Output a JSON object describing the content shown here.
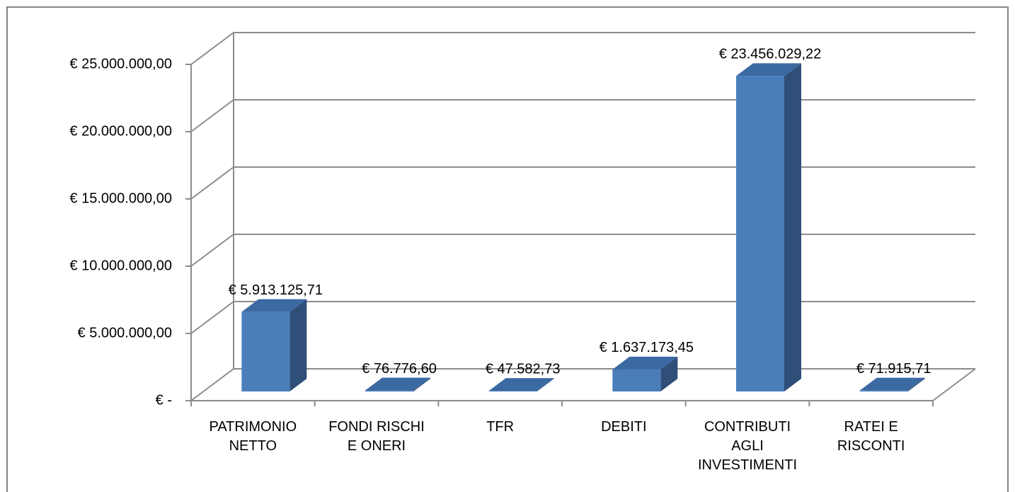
{
  "chart_data": {
    "type": "bar3d",
    "categories": [
      "PATRIMONIO NETTO",
      "FONDI RISCHI E ONERI",
      "TFR",
      "DEBITI",
      "CONTRIBUTI AGLI INVESTIMENTI",
      "RATEI E RISCONTI"
    ],
    "values": [
      5913125.71,
      76776.6,
      47582.73,
      1637173.45,
      23456029.22,
      71915.71
    ],
    "value_labels": [
      "€ 5.913.125,71",
      "€ 76.776,60",
      "€ 47.582,73",
      "€ 1.637.173,45",
      "€ 23.456.029,22",
      "€ 71.915,71"
    ],
    "color": "#4a7ebb",
    "ylim": [
      0,
      25000000
    ],
    "yticks": [
      {
        "value": 0,
        "label": "€ -"
      },
      {
        "value": 5000000,
        "label": "€ 5.000.000,00"
      },
      {
        "value": 10000000,
        "label": "€ 10.000.000,00"
      },
      {
        "value": 15000000,
        "label": "€ 15.000.000,00"
      },
      {
        "value": 20000000,
        "label": "€ 20.000.000,00"
      },
      {
        "value": 25000000,
        "label": "€ 25.000.000,00"
      }
    ],
    "grid": true
  }
}
